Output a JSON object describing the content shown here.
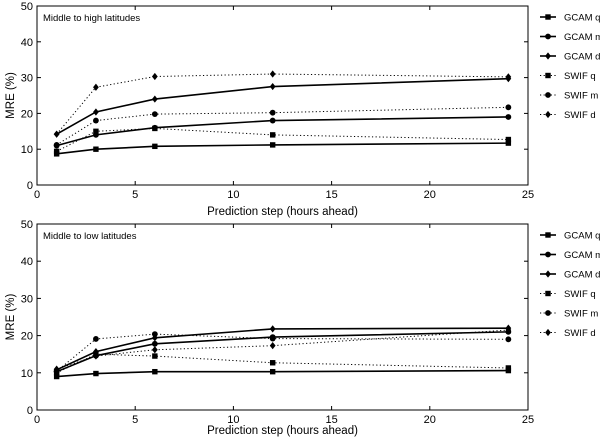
{
  "chart_data": [
    {
      "type": "line",
      "title": "Middle to high latitudes",
      "xlabel": "Prediction step (hours ahead)",
      "ylabel": "MRE (%)",
      "xlim": [
        0,
        25
      ],
      "ylim": [
        0,
        50
      ],
      "xticks": [
        0,
        5,
        10,
        15,
        20,
        25
      ],
      "yticks": [
        0,
        10,
        20,
        30,
        40,
        50
      ],
      "grid": false,
      "legend_position": "right",
      "x": [
        1,
        3,
        6,
        12,
        24
      ],
      "series": [
        {
          "name": "GCAM q",
          "style": "solid",
          "marker": "square",
          "values": [
            8.7,
            10.0,
            10.8,
            11.2,
            11.7
          ]
        },
        {
          "name": "GCAM m",
          "style": "solid",
          "marker": "circle",
          "values": [
            11.0,
            14.0,
            16.0,
            18.0,
            19.0
          ]
        },
        {
          "name": "GCAM d",
          "style": "solid",
          "marker": "diamond",
          "values": [
            14.2,
            20.4,
            24.0,
            27.5,
            29.7
          ]
        },
        {
          "name": "SWIF q",
          "style": "dotted",
          "marker": "square",
          "values": [
            9.4,
            15.0,
            15.8,
            14.0,
            12.7
          ]
        },
        {
          "name": "SWIF m",
          "style": "dotted",
          "marker": "circle",
          "values": [
            11.2,
            18.0,
            19.8,
            20.2,
            21.7
          ]
        },
        {
          "name": "SWIF d",
          "style": "dotted",
          "marker": "diamond",
          "values": [
            14.2,
            27.3,
            30.3,
            31.0,
            30.2
          ]
        }
      ]
    },
    {
      "type": "line",
      "title": "Middle to low latitudes",
      "xlabel": "Prediction step (hours ahead)",
      "ylabel": "MRE (%)",
      "xlim": [
        0,
        25
      ],
      "ylim": [
        0,
        50
      ],
      "xticks": [
        0,
        5,
        10,
        15,
        20,
        25
      ],
      "yticks": [
        0,
        10,
        20,
        30,
        40,
        50
      ],
      "grid": false,
      "legend_position": "right",
      "x": [
        1,
        3,
        6,
        12,
        24
      ],
      "series": [
        {
          "name": "GCAM q",
          "style": "solid",
          "marker": "square",
          "values": [
            9.0,
            9.8,
            10.3,
            10.3,
            10.6
          ]
        },
        {
          "name": "GCAM m",
          "style": "solid",
          "marker": "circle",
          "values": [
            10.3,
            14.6,
            17.8,
            19.6,
            21.0
          ]
        },
        {
          "name": "GCAM d",
          "style": "solid",
          "marker": "diamond",
          "values": [
            10.8,
            15.7,
            19.4,
            21.8,
            22.0
          ]
        },
        {
          "name": "SWIF q",
          "style": "dotted",
          "marker": "square",
          "values": [
            10.0,
            15.0,
            14.5,
            12.7,
            11.3
          ]
        },
        {
          "name": "SWIF m",
          "style": "dotted",
          "marker": "circle",
          "values": [
            10.4,
            19.1,
            20.4,
            19.2,
            19.0
          ]
        },
        {
          "name": "SWIF d",
          "style": "dotted",
          "marker": "diamond",
          "values": [
            11.0,
            14.5,
            16.2,
            17.3,
            21.5
          ]
        }
      ]
    }
  ]
}
